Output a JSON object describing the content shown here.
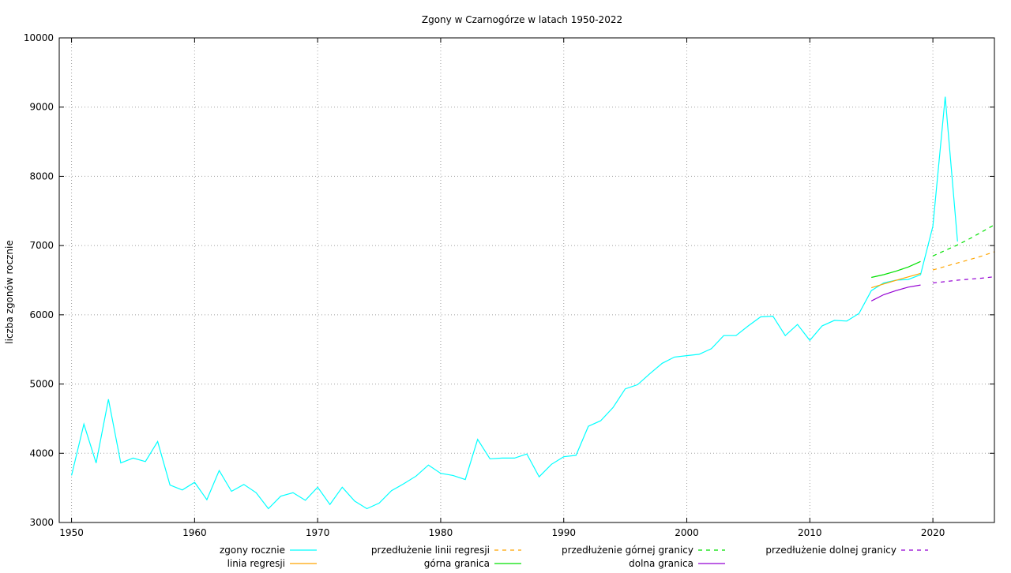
{
  "chart_data": {
    "type": "line",
    "title": "Zgony w Czarnogórze w latach 1950-2022",
    "xlabel": "",
    "ylabel": "liczba zgonów rocznie",
    "xlim": [
      1949,
      2025
    ],
    "ylim": [
      3000,
      10000
    ],
    "x_ticks": [
      1950,
      1960,
      1970,
      1980,
      1990,
      2000,
      2010,
      2020
    ],
    "y_ticks": [
      3000,
      4000,
      5000,
      6000,
      7000,
      8000,
      9000,
      10000
    ],
    "grid": true,
    "legend_position": "bottom",
    "series": [
      {
        "name": "zgony rocznie",
        "color": "#00ffff",
        "style": "solid",
        "x": [
          1950,
          1951,
          1952,
          1953,
          1954,
          1955,
          1956,
          1957,
          1958,
          1959,
          1960,
          1961,
          1962,
          1963,
          1964,
          1965,
          1966,
          1967,
          1968,
          1969,
          1970,
          1971,
          1972,
          1973,
          1974,
          1975,
          1976,
          1977,
          1978,
          1979,
          1980,
          1981,
          1982,
          1983,
          1984,
          1985,
          1986,
          1987,
          1988,
          1989,
          1990,
          1991,
          1992,
          1993,
          1994,
          1995,
          1996,
          1997,
          1998,
          1999,
          2000,
          2001,
          2002,
          2003,
          2004,
          2005,
          2006,
          2007,
          2008,
          2009,
          2010,
          2011,
          2012,
          2013,
          2014,
          2015,
          2016,
          2017,
          2018,
          2019,
          2020,
          2021,
          2022
        ],
        "y": [
          3680,
          4420,
          3860,
          4780,
          3860,
          3930,
          3880,
          4170,
          3540,
          3470,
          3580,
          3330,
          3750,
          3450,
          3550,
          3430,
          3200,
          3380,
          3430,
          3320,
          3510,
          3260,
          3510,
          3310,
          3200,
          3280,
          3460,
          3560,
          3670,
          3830,
          3710,
          3680,
          3620,
          4200,
          3920,
          3930,
          3930,
          3990,
          3660,
          3840,
          3950,
          3970,
          4390,
          4470,
          4660,
          4930,
          4990,
          5150,
          5300,
          5390,
          5410,
          5430,
          5510,
          5700,
          5700,
          5840,
          5970,
          5980,
          5700,
          5860,
          5630,
          5840,
          5920,
          5910,
          6020,
          6350,
          6460,
          6500,
          6510,
          6580,
          7280,
          9150,
          7060
        ]
      },
      {
        "name": "linia regresji",
        "color": "#ffa500",
        "style": "solid",
        "x": [
          2015,
          2016,
          2017,
          2018,
          2019
        ],
        "y": [
          6390,
          6445,
          6498,
          6548,
          6598
        ]
      },
      {
        "name": "przedłużenie linii regresji",
        "color": "#ffa500",
        "style": "dashed",
        "x": [
          2020,
          2021,
          2022,
          2023,
          2024,
          2025
        ],
        "y": [
          6648,
          6698,
          6748,
          6798,
          6850,
          6910
        ]
      },
      {
        "name": "górna granica",
        "color": "#00e000",
        "style": "solid",
        "x": [
          2015,
          2016,
          2017,
          2018,
          2019
        ],
        "y": [
          6540,
          6580,
          6630,
          6690,
          6770
        ]
      },
      {
        "name": "przedłużenie górnej granicy",
        "color": "#00e000",
        "style": "dashed",
        "x": [
          2020,
          2021,
          2022,
          2023,
          2024,
          2025
        ],
        "y": [
          6850,
          6930,
          7010,
          7100,
          7200,
          7300
        ]
      },
      {
        "name": "dolna granica",
        "color": "#9400d3",
        "style": "solid",
        "x": [
          2015,
          2016,
          2017,
          2018,
          2019
        ],
        "y": [
          6200,
          6290,
          6350,
          6400,
          6430
        ]
      },
      {
        "name": "przedłużenie dolnej granicy",
        "color": "#9400d3",
        "style": "dashed",
        "x": [
          2020,
          2021,
          2022,
          2023,
          2024,
          2025
        ],
        "y": [
          6460,
          6480,
          6500,
          6515,
          6530,
          6550
        ]
      }
    ],
    "legend_order": [
      0,
      1,
      2,
      3,
      4,
      5,
      6
    ]
  }
}
